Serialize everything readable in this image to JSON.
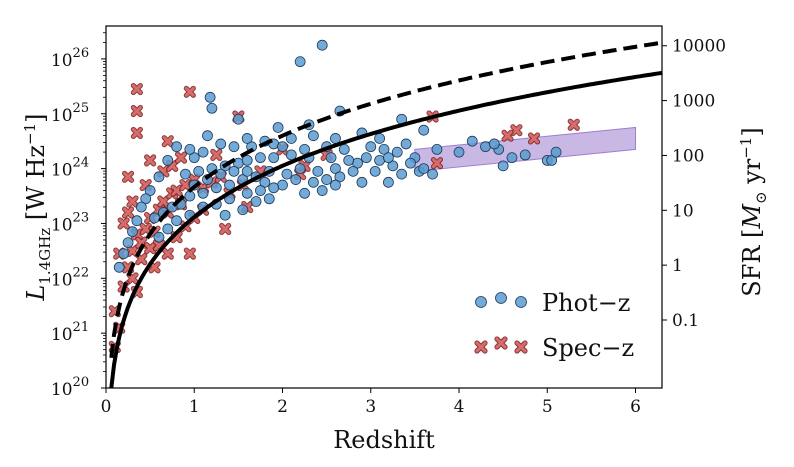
{
  "chart_data": {
    "type": "scatter",
    "xlabel": "Redshift",
    "ylabel": "L_1.4GHz [W Hz^-1]",
    "ylabel_parts": {
      "L": "L",
      "sub": "1.4GHz",
      "unit_open": " [W Hz",
      "unit_exp": "−1",
      "unit_close": "]"
    },
    "y2label": "SFR [M⊙ yr^-1]",
    "y2label_parts": {
      "main": "SFR [",
      "M": "M",
      "sun": "⊙",
      "unit": " yr",
      "unit_exp": "−1",
      "close": "]"
    },
    "xlim": [
      0,
      6.3
    ],
    "ylim_log10": [
      20,
      26.6
    ],
    "x_ticks": [
      "0",
      "1",
      "2",
      "3",
      "4",
      "5",
      "6"
    ],
    "x_tick_values": [
      0,
      1,
      2,
      3,
      4,
      5,
      6
    ],
    "y_ticks": [
      {
        "base": "10",
        "exp": "20",
        "value": 20
      },
      {
        "base": "10",
        "exp": "21",
        "value": 21
      },
      {
        "base": "10",
        "exp": "22",
        "value": 22
      },
      {
        "base": "10",
        "exp": "23",
        "value": 23
      },
      {
        "base": "10",
        "exp": "24",
        "value": 24
      },
      {
        "base": "10",
        "exp": "25",
        "value": 25
      },
      {
        "base": "10",
        "exp": "26",
        "value": 26
      }
    ],
    "y2_ticks": [
      {
        "label": "0.1",
        "log10L": 21.24
      },
      {
        "label": "1",
        "log10L": 22.24
      },
      {
        "label": "10",
        "log10L": 23.24
      },
      {
        "label": "100",
        "log10L": 24.24
      },
      {
        "label": "1000",
        "log10L": 25.24
      },
      {
        "label": "10000",
        "log10L": 26.24
      }
    ],
    "legend": [
      {
        "label": "Phot−z",
        "marker": "circle",
        "color": "#5b9bd0"
      },
      {
        "label": "Spec−z",
        "marker": "x",
        "color": "#d96b6b"
      }
    ],
    "legend_position": "lower-right",
    "colors": {
      "phot": "#5b9bd0",
      "phot_edge": "#1e3a5a",
      "spec": "#d96b6b",
      "spec_edge": "#7a1f1f",
      "band": "#b49ad9",
      "curve": "#000000"
    },
    "series": [
      {
        "name": "Phot−z",
        "points": [
          [
            1.18,
            25.3
          ],
          [
            1.2,
            25.1
          ],
          [
            2.2,
            25.95
          ],
          [
            2.45,
            26.25
          ],
          [
            1.5,
            24.9
          ],
          [
            3.35,
            24.9
          ],
          [
            2.6,
            24.55
          ],
          [
            2.9,
            24.65
          ],
          [
            2.1,
            24.55
          ],
          [
            1.9,
            24.45
          ],
          [
            2.35,
            24.6
          ],
          [
            3.6,
            24.7
          ],
          [
            3.75,
            24.35
          ],
          [
            4.0,
            24.3
          ],
          [
            4.15,
            24.5
          ],
          [
            4.3,
            24.4
          ],
          [
            4.45,
            24.35
          ],
          [
            4.6,
            24.2
          ],
          [
            4.5,
            24.05
          ],
          [
            4.75,
            24.25
          ],
          [
            5.0,
            24.15
          ],
          [
            5.05,
            24.15
          ],
          [
            5.1,
            24.3
          ],
          [
            4.4,
            24.45
          ],
          [
            0.8,
            24.4
          ],
          [
            0.7,
            24.15
          ],
          [
            1.0,
            24.2
          ],
          [
            1.1,
            24.3
          ],
          [
            1.3,
            24.45
          ],
          [
            1.45,
            24.4
          ],
          [
            1.65,
            24.4
          ],
          [
            1.8,
            24.5
          ],
          [
            2.0,
            24.4
          ],
          [
            2.25,
            24.35
          ],
          [
            2.5,
            24.4
          ],
          [
            2.7,
            24.35
          ],
          [
            3.0,
            24.4
          ],
          [
            3.15,
            24.35
          ],
          [
            3.3,
            24.3
          ],
          [
            3.5,
            24.2
          ],
          [
            3.45,
            24.1
          ],
          [
            3.25,
            24.05
          ],
          [
            3.1,
            24.15
          ],
          [
            2.85,
            24.1
          ],
          [
            2.6,
            24.0
          ],
          [
            2.4,
            23.95
          ],
          [
            2.2,
            24.0
          ],
          [
            2.05,
            23.9
          ],
          [
            1.85,
            23.95
          ],
          [
            1.7,
            23.85
          ],
          [
            1.55,
            23.8
          ],
          [
            1.4,
            23.7
          ],
          [
            1.25,
            23.65
          ],
          [
            1.1,
            23.55
          ],
          [
            0.95,
            23.5
          ],
          [
            0.85,
            23.35
          ],
          [
            0.75,
            23.3
          ],
          [
            0.65,
            23.2
          ],
          [
            0.55,
            23.1
          ],
          [
            0.5,
            23.6
          ],
          [
            0.45,
            23.45
          ],
          [
            0.35,
            23.05
          ],
          [
            0.3,
            22.85
          ],
          [
            0.25,
            22.65
          ],
          [
            0.2,
            22.45
          ],
          [
            0.15,
            22.2
          ],
          [
            0.6,
            23.85
          ],
          [
            0.9,
            23.9
          ],
          [
            1.05,
            23.95
          ],
          [
            1.2,
            24.0
          ],
          [
            1.35,
            24.05
          ],
          [
            1.5,
            24.1
          ],
          [
            1.6,
            24.15
          ],
          [
            1.75,
            24.2
          ],
          [
            1.9,
            24.2
          ],
          [
            2.1,
            24.25
          ],
          [
            2.3,
            24.2
          ],
          [
            2.55,
            24.2
          ],
          [
            2.75,
            24.15
          ],
          [
            2.95,
            24.2
          ],
          [
            3.2,
            24.2
          ],
          [
            3.4,
            24.45
          ],
          [
            3.55,
            23.95
          ],
          [
            3.7,
            23.9
          ],
          [
            1.0,
            23.7
          ],
          [
            1.15,
            23.8
          ],
          [
            1.3,
            23.9
          ],
          [
            1.45,
            23.95
          ],
          [
            1.6,
            23.95
          ],
          [
            1.8,
            23.75
          ],
          [
            2.0,
            23.7
          ],
          [
            2.15,
            23.8
          ],
          [
            2.35,
            23.75
          ],
          [
            2.5,
            23.8
          ],
          [
            2.65,
            23.85
          ],
          [
            2.8,
            23.95
          ],
          [
            3.05,
            23.95
          ],
          [
            3.35,
            23.9
          ],
          [
            1.4,
            23.45
          ],
          [
            1.6,
            23.55
          ],
          [
            1.75,
            23.6
          ],
          [
            1.9,
            23.65
          ],
          [
            1.25,
            23.35
          ],
          [
            1.1,
            23.3
          ],
          [
            0.95,
            23.15
          ],
          [
            0.8,
            23.05
          ],
          [
            1.55,
            23.25
          ],
          [
            1.7,
            23.4
          ],
          [
            2.25,
            23.55
          ],
          [
            2.45,
            23.6
          ],
          [
            0.7,
            22.9
          ],
          [
            0.6,
            22.75
          ],
          [
            1.35,
            23.15
          ],
          [
            1.85,
            23.45
          ],
          [
            2.6,
            23.7
          ],
          [
            2.9,
            23.75
          ],
          [
            3.2,
            23.75
          ],
          [
            3.6,
            24.0
          ],
          [
            0.4,
            23.3
          ],
          [
            1.15,
            24.6
          ],
          [
            2.65,
            25.05
          ],
          [
            2.3,
            24.8
          ],
          [
            1.6,
            24.55
          ],
          [
            0.95,
            24.35
          ],
          [
            1.95,
            24.75
          ],
          [
            3.1,
            24.55
          ]
        ]
      },
      {
        "name": "Spec−z",
        "points": [
          [
            0.35,
            25.45
          ],
          [
            0.35,
            25.05
          ],
          [
            0.35,
            24.65
          ],
          [
            0.95,
            25.4
          ],
          [
            0.25,
            23.85
          ],
          [
            1.5,
            24.95
          ],
          [
            3.7,
            24.95
          ],
          [
            4.65,
            24.7
          ],
          [
            5.3,
            24.8
          ],
          [
            4.85,
            24.55
          ],
          [
            3.75,
            24.1
          ],
          [
            4.55,
            24.6
          ],
          [
            0.15,
            22.45
          ],
          [
            0.2,
            23.0
          ],
          [
            0.25,
            23.2
          ],
          [
            0.1,
            21.4
          ],
          [
            0.15,
            21.1
          ],
          [
            0.1,
            20.75
          ],
          [
            0.25,
            22.2
          ],
          [
            0.3,
            22.5
          ],
          [
            0.35,
            22.8
          ],
          [
            0.4,
            22.65
          ],
          [
            0.45,
            22.9
          ],
          [
            0.5,
            23.1
          ],
          [
            0.55,
            22.85
          ],
          [
            0.6,
            23.25
          ],
          [
            0.65,
            23.4
          ],
          [
            0.7,
            23.2
          ],
          [
            0.75,
            23.55
          ],
          [
            0.8,
            23.6
          ],
          [
            0.85,
            23.35
          ],
          [
            0.9,
            23.7
          ],
          [
            1.0,
            23.8
          ],
          [
            1.1,
            23.65
          ],
          [
            1.2,
            23.75
          ],
          [
            1.3,
            23.85
          ],
          [
            1.4,
            23.55
          ],
          [
            1.55,
            23.7
          ],
          [
            1.75,
            23.95
          ],
          [
            2.0,
            24.35
          ],
          [
            2.25,
            24.05
          ],
          [
            2.5,
            24.25
          ],
          [
            0.3,
            22.0
          ],
          [
            0.35,
            21.75
          ],
          [
            0.2,
            21.85
          ],
          [
            0.4,
            22.35
          ],
          [
            0.5,
            22.55
          ],
          [
            0.55,
            22.2
          ],
          [
            0.6,
            22.6
          ],
          [
            0.7,
            22.45
          ],
          [
            0.8,
            22.75
          ],
          [
            0.9,
            22.95
          ],
          [
            1.0,
            23.1
          ],
          [
            1.1,
            23.25
          ],
          [
            0.65,
            23.95
          ],
          [
            0.75,
            24.05
          ],
          [
            0.85,
            24.2
          ],
          [
            0.7,
            24.5
          ],
          [
            0.5,
            24.15
          ],
          [
            1.25,
            24.25
          ],
          [
            0.45,
            23.7
          ],
          [
            0.3,
            23.4
          ],
          [
            1.35,
            22.9
          ],
          [
            1.6,
            23.3
          ],
          [
            2.2,
            23.9
          ],
          [
            0.95,
            22.45
          ]
        ]
      }
    ],
    "curves": [
      {
        "style": "solid",
        "offset_log10": 0.0
      },
      {
        "style": "dashed",
        "offset_log10": 0.55
      }
    ],
    "band": {
      "x": [
        3.5,
        6.0
      ],
      "lower_log10": [
        23.95,
        24.35
      ],
      "upper_log10": [
        24.35,
        24.75
      ]
    }
  }
}
